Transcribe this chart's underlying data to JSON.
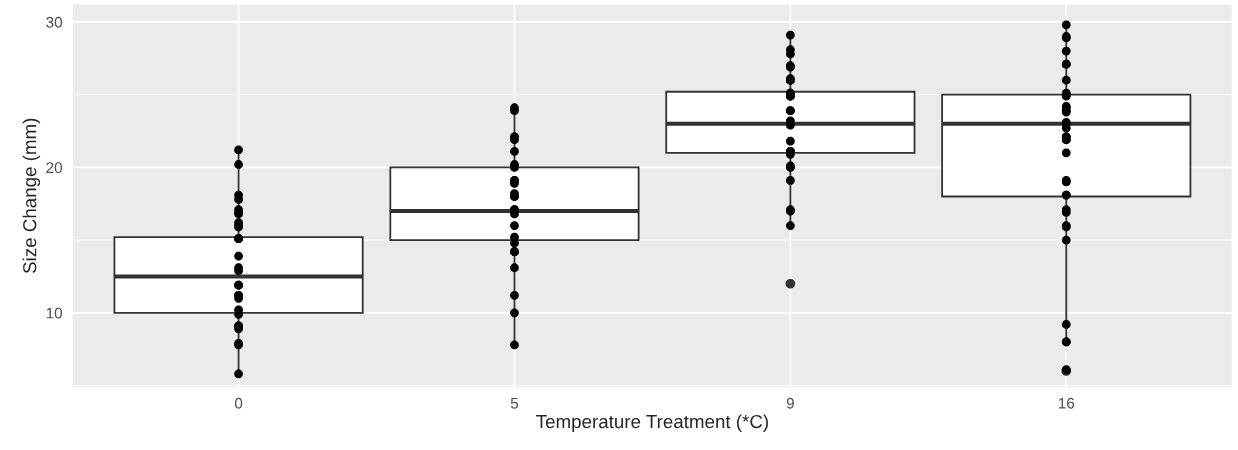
{
  "chart_data": {
    "type": "box",
    "xlabel": "Temperature Treatment (*C)",
    "ylabel": "Size Change (mm)",
    "categories": [
      "0",
      "5",
      "9",
      "16"
    ],
    "ylim": [
      4.9,
      31.2
    ],
    "yticks": [
      {
        "value": 5,
        "label": null
      },
      10,
      {
        "value": 15,
        "label": null
      },
      20,
      {
        "value": 25,
        "label": null
      },
      30
    ],
    "grid": true,
    "boxes": [
      {
        "low": 5.9,
        "q1": 10,
        "median": 12.5,
        "q3": 15.2,
        "high": 21.2
      },
      {
        "low": 8,
        "q1": 15,
        "median": 17,
        "q3": 20,
        "high": 24
      },
      {
        "low": 16,
        "q1": 21,
        "median": 23,
        "q3": 25.2,
        "high": 29,
        "outliers": [
          12
        ]
      },
      {
        "low": 8,
        "q1": 18,
        "median": 23,
        "q3": 25,
        "high": 30,
        "outliers": [
          6
        ]
      }
    ],
    "series": [
      {
        "type": "scatter",
        "color": "#000000",
        "marker": "circle",
        "x": [
          "0",
          "0",
          "0",
          "0",
          "0",
          "0",
          "0",
          "0",
          "0",
          "0",
          "0",
          "0",
          "0",
          "0",
          "0",
          "0",
          "0",
          "0",
          "0",
          "0",
          "0",
          "0",
          "0",
          "0",
          "0",
          "0",
          "0",
          "0",
          "0",
          "5",
          "5",
          "5",
          "5",
          "5",
          "5",
          "5",
          "5",
          "5",
          "5",
          "5",
          "5",
          "5",
          "5",
          "5",
          "5",
          "5",
          "5",
          "5",
          "5",
          "5",
          "5",
          "5",
          "5",
          "5",
          "5",
          "5",
          "9",
          "9",
          "9",
          "9",
          "9",
          "9",
          "9",
          "9",
          "9",
          "9",
          "9",
          "9",
          "9",
          "9",
          "9",
          "9",
          "9",
          "9",
          "9",
          "9",
          "9",
          "9",
          "9",
          "9",
          "9",
          "9",
          "9",
          "16",
          "16",
          "16",
          "16",
          "16",
          "16",
          "16",
          "16",
          "16",
          "16",
          "16",
          "16",
          "16",
          "16",
          "16",
          "16",
          "16",
          "16",
          "16",
          "16",
          "16",
          "16",
          "16",
          "16",
          "16",
          "16",
          "16",
          "16",
          "16",
          "16",
          "16",
          "16",
          "16",
          "16",
          "16",
          "16"
        ],
        "values": [
          21.2,
          20.2,
          18.1,
          17.8,
          16.9,
          16.8,
          17.1,
          16.2,
          16.0,
          15.9,
          15.1,
          15.1,
          15.1,
          13.9,
          13.1,
          12.9,
          11.9,
          11.9,
          11.2,
          11.0,
          11.2,
          9.9,
          10.2,
          9.1,
          9.1,
          8.9,
          7.9,
          7.8,
          5.8,
          24.1,
          23.9,
          22.1,
          21.9,
          22.1,
          21.1,
          20.0,
          20.2,
          19.1,
          19.1,
          18.9,
          18.0,
          18.2,
          18.0,
          17.1,
          17.1,
          16.8,
          16.0,
          15.2,
          14.8,
          14.2,
          14.2,
          14.2,
          13.1,
          11.2,
          10.0,
          7.8,
          29.1,
          28.1,
          27.8,
          27.0,
          26.9,
          26.1,
          26.0,
          26.0,
          26.0,
          25.1,
          24.9,
          25.1,
          24.9,
          23.9,
          23.9,
          23.2,
          22.9,
          21.8,
          20.9,
          21.1,
          21.1,
          20.1,
          20.0,
          19.1,
          17.0,
          17.1,
          16.0,
          29.8,
          28.9,
          29.0,
          28.0,
          27.1,
          27.1,
          26.0,
          25.1,
          25.0,
          24.9,
          24.2,
          24.1,
          23.8,
          23.9,
          23.1,
          23.0,
          23.0,
          22.7,
          21.9,
          21.9,
          22.1,
          22.1,
          21.0,
          19.1,
          19.0,
          18.1,
          18.1,
          17.1,
          16.9,
          16.0,
          15.9,
          15.0,
          9.2,
          8.0,
          8.0,
          6.1
        ]
      }
    ]
  }
}
